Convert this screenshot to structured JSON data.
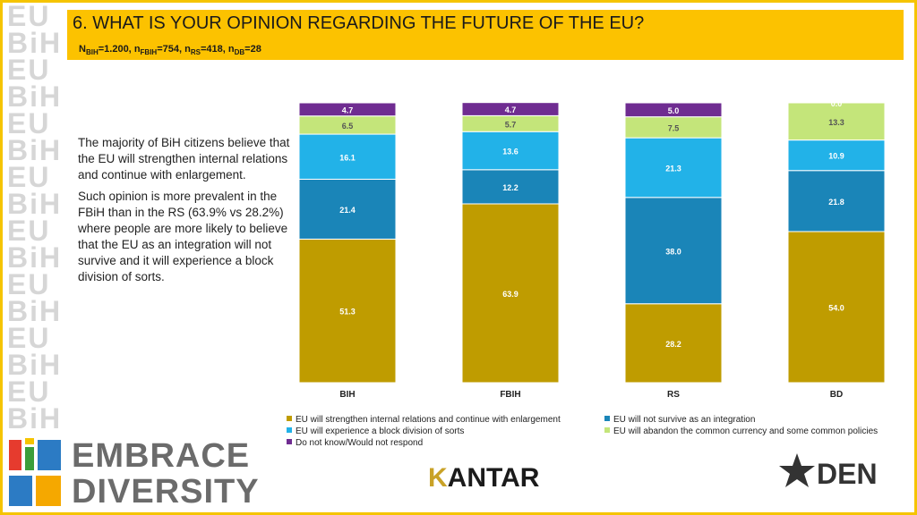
{
  "header": {
    "title": "6. WHAT IS YOUR OPINION REGARDING THE FUTURE OF THE EU?",
    "sample": {
      "n_bih_label": "N",
      "n_bih_sub": "BIH",
      "n_bih_val": "=1.200, ",
      "n_fbih_label": "n",
      "n_fbih_sub": "FBIH",
      "n_fbih_val": "=754, ",
      "n_rs_label": "n",
      "n_rs_sub": "RS",
      "n_rs_val": "=418, ",
      "n_db_label": "n",
      "n_db_sub": "DB",
      "n_db_val": "=28"
    }
  },
  "description": {
    "para1": "The majority of BiH citizens believe that the EU will strengthen internal relations and continue with enlargement.",
    "para2": "Such opinion is more prevalent in the FBiH than in the RS (63.9% vs 28.2%) where people are more likely to believe that the EU as an integration will not survive and it will experience a block division of sorts."
  },
  "chart_data": {
    "type": "bar",
    "stacked": true,
    "categories": [
      "BIH",
      "FBIH",
      "RS",
      "BD"
    ],
    "series": [
      {
        "name": "EU will strengthen internal relations and continue with enlargement",
        "color": "#bf9c00",
        "values": [
          51.3,
          63.9,
          28.2,
          54.0
        ]
      },
      {
        "name": "EU will not survive as an integration",
        "color": "#1a85b8",
        "values": [
          21.4,
          12.2,
          38.0,
          21.8
        ]
      },
      {
        "name": "EU will experience a block division of sorts",
        "color": "#22b2e8",
        "values": [
          16.1,
          13.6,
          21.3,
          10.9
        ]
      },
      {
        "name": "EU will abandon the common currency and some common policies",
        "color": "#c4e57a",
        "values": [
          6.5,
          5.7,
          7.5,
          13.3
        ]
      },
      {
        "name": "Do not know/Would not respond",
        "color": "#6f2c91",
        "values": [
          4.7,
          4.7,
          5.0,
          0.0
        ]
      }
    ],
    "labels": [
      [
        "51.3",
        "21.4",
        "16.1",
        "6.5",
        "4.7"
      ],
      [
        "63.9",
        "12.2",
        "13.6",
        "5.7",
        "4.7"
      ],
      [
        "28.2",
        "38.0",
        "21.3",
        "7.5",
        "5.0"
      ],
      [
        "54.0",
        "21.8",
        "10.9",
        "13.3",
        "0.0"
      ]
    ],
    "ylim": [
      0,
      100
    ]
  },
  "legend": {
    "items": [
      "EU will strengthen internal relations and continue with enlargement",
      "EU will not survive as an integration",
      "EU will experience a block division of sorts",
      "EU will abandon the common currency and some common policies",
      "Do not know/Would not respond"
    ]
  },
  "footer": {
    "embrace_line1": "EMBRACE",
    "embrace_line2": "DIVERSITY",
    "kantar_k": "K",
    "kantar_rest": "ANTAR",
    "den": "DEN"
  },
  "colors": {
    "header_bg": "#fcc200",
    "frame": "#f5c400"
  }
}
